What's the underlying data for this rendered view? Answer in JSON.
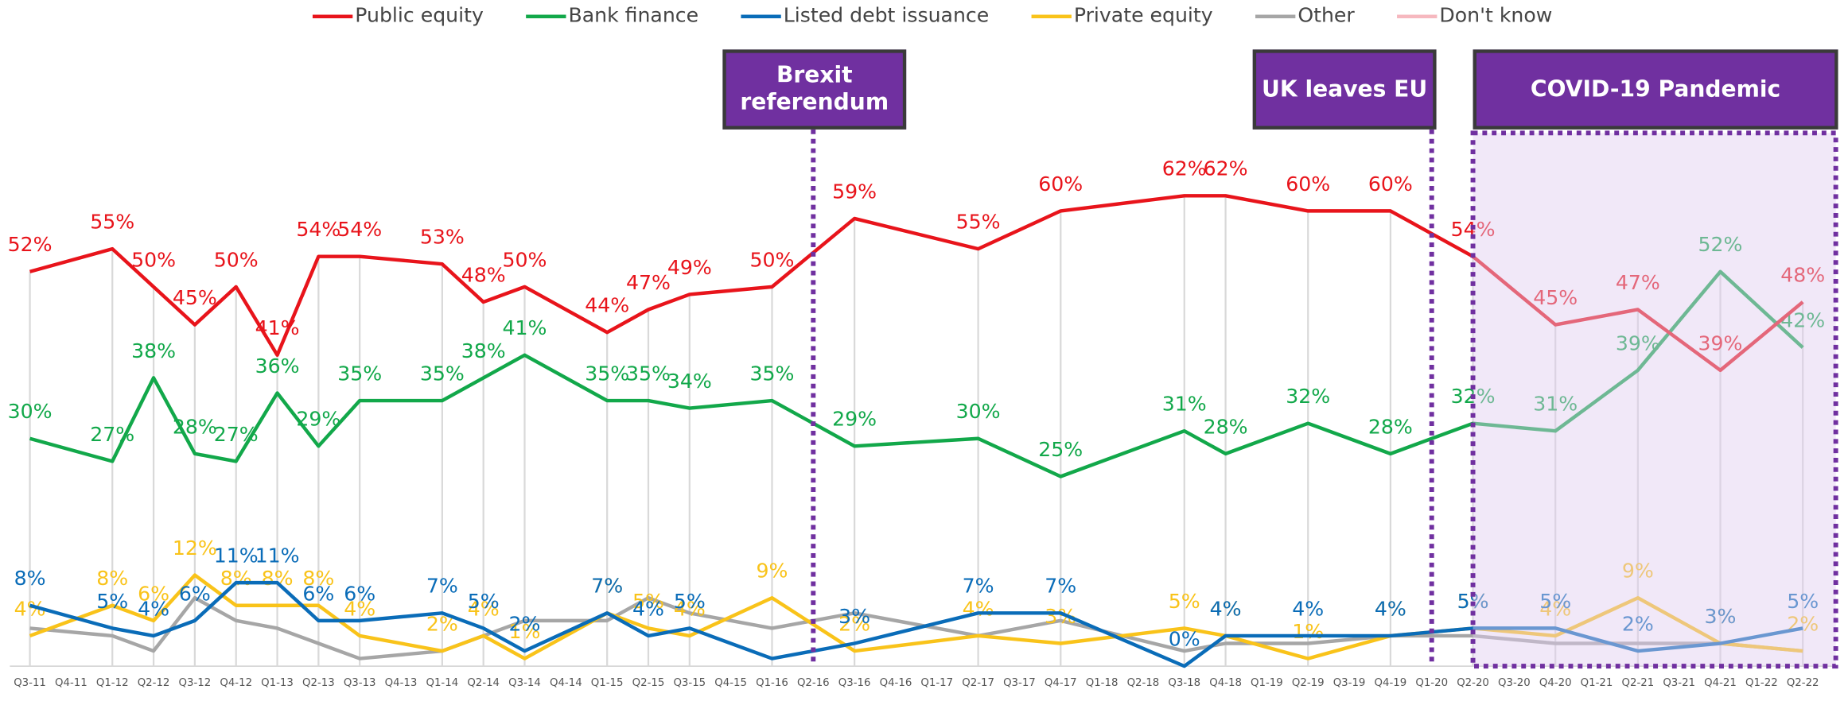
{
  "chart_data": {
    "type": "line",
    "categories": [
      "Q3-11",
      "Q4-11",
      "Q1-12",
      "Q2-12",
      "Q3-12",
      "Q4-12",
      "Q1-13",
      "Q2-13",
      "Q3-13",
      "Q4-13",
      "Q1-14",
      "Q2-14",
      "Q3-14",
      "Q4-14",
      "Q1-15",
      "Q2-15",
      "Q3-15",
      "Q4-15",
      "Q1-16",
      "Q2-16",
      "Q3-16",
      "Q4-16",
      "Q1-17",
      "Q2-17",
      "Q3-17",
      "Q4-17",
      "Q1-18",
      "Q2-18",
      "Q3-18",
      "Q4-18",
      "Q1-19",
      "Q2-19",
      "Q3-19",
      "Q4-19",
      "Q1-20",
      "Q2-20",
      "Q3-20",
      "Q4-20",
      "Q1-21",
      "Q2-21",
      "Q3-21",
      "Q4-21",
      "Q1-22",
      "Q2-22"
    ],
    "x": [
      "Q3-11",
      "Q1-12",
      "Q2-12",
      "Q3-12",
      "Q4-12",
      "Q1-13",
      "Q2-13",
      "Q3-13",
      "Q1-14",
      "Q2-14",
      "Q3-14",
      "Q1-15",
      "Q2-15",
      "Q3-15",
      "Q1-16",
      "Q3-16",
      "Q2-17",
      "Q4-17",
      "Q3-18",
      "Q4-18",
      "Q2-19",
      "Q4-19",
      "Q2-20",
      "Q4-20",
      "Q2-21",
      "Q4-21",
      "Q2-22"
    ],
    "ylim": [
      0,
      65
    ],
    "series": [
      {
        "name": "Public equity",
        "color": "#e8141b",
        "values": [
          52,
          55,
          50,
          45,
          50,
          41,
          54,
          54,
          53,
          48,
          50,
          44,
          47,
          49,
          50,
          59,
          55,
          60,
          62,
          62,
          60,
          60,
          54,
          45,
          47,
          39,
          48
        ],
        "value_labels": [
          "52%",
          "55%",
          "50%",
          "45%",
          "50%",
          "41%",
          "54%",
          "54%",
          "53%",
          "48%",
          "50%",
          "44%",
          "47%",
          "49%",
          "50%",
          "59%",
          "55%",
          "60%",
          "62%",
          "62%",
          "60%",
          "60%",
          "54%",
          "45%",
          "47%",
          "39%",
          "48%"
        ]
      },
      {
        "name": "Bank finance",
        "color": "#12a84a",
        "values": [
          30,
          27,
          38,
          28,
          27,
          36,
          29,
          35,
          35,
          38,
          41,
          35,
          35,
          34,
          35,
          29,
          30,
          25,
          31,
          28,
          32,
          28,
          32,
          31,
          39,
          52,
          42
        ],
        "value_labels": [
          "30%",
          "27%",
          "38%",
          "28%",
          "27%",
          "36%",
          "29%",
          "35%",
          "35%",
          "38%",
          "41%",
          "35%",
          "35%",
          "34%",
          "35%",
          "29%",
          "30%",
          "25%",
          "31%",
          "28%",
          "32%",
          "28%",
          "32%",
          "31%",
          "39%",
          "52%",
          "42%"
        ]
      },
      {
        "name": "Listed debt issuance",
        "color": "#0a6cb8",
        "values": [
          8,
          5,
          4,
          6,
          11,
          11,
          6,
          6,
          7,
          5,
          2,
          7,
          4,
          5,
          1,
          3,
          7,
          7,
          0,
          4,
          4,
          4,
          5,
          5,
          2,
          3,
          5
        ],
        "value_labels": [
          "8%",
          "5%",
          "4%",
          "6%",
          "11%",
          "11%",
          "6%",
          "6%",
          "7%",
          "5%",
          "2%",
          "7%",
          "4%",
          "5%",
          null,
          "3%",
          "7%",
          "7%",
          "0%",
          "4%",
          "4%",
          "4%",
          "5%",
          "5%",
          "2%",
          "3%",
          "5%"
        ]
      },
      {
        "name": "Private equity",
        "color": "#f9c31a",
        "values": [
          4,
          8,
          6,
          12,
          8,
          8,
          8,
          4,
          2,
          4,
          1,
          7,
          5,
          4,
          9,
          2,
          4,
          3,
          5,
          4,
          1,
          4,
          5,
          4,
          9,
          3,
          2
        ],
        "value_labels": [
          "4%",
          "8%",
          "6%",
          "12%",
          "8%",
          "8%",
          "8%",
          "4%",
          "2%",
          "4%",
          "1%",
          "7%",
          "5%",
          "4%",
          "9%",
          "2%",
          "4%",
          "3%",
          "5%",
          "4%",
          "1%",
          "4%",
          "5%",
          "4%",
          "9%",
          "3%",
          "2%"
        ]
      },
      {
        "name": "Other",
        "color": "#a6a6a6",
        "values": [
          5,
          4,
          2,
          9,
          6,
          5,
          3,
          1,
          2,
          4,
          6,
          6,
          9,
          7,
          5,
          7,
          4,
          6,
          2,
          3,
          3,
          4,
          4,
          3,
          3,
          3,
          2
        ]
      },
      {
        "name": "Don't know",
        "color": "#f6b8bf",
        "values": [
          null,
          null,
          null,
          null,
          null,
          null,
          null,
          null,
          null,
          null,
          null,
          null,
          null,
          null,
          null,
          null,
          null,
          null,
          null,
          null,
          null,
          null,
          null,
          null,
          null,
          null,
          null
        ]
      }
    ],
    "annotations": [
      {
        "text": "Brexit referendum",
        "at": "Q2-16"
      },
      {
        "text": "UK leaves EU",
        "at": "Q1-20"
      },
      {
        "text": "COVID-19 Pandemic",
        "from": "Q2-20",
        "to": "Q2-22"
      }
    ]
  }
}
